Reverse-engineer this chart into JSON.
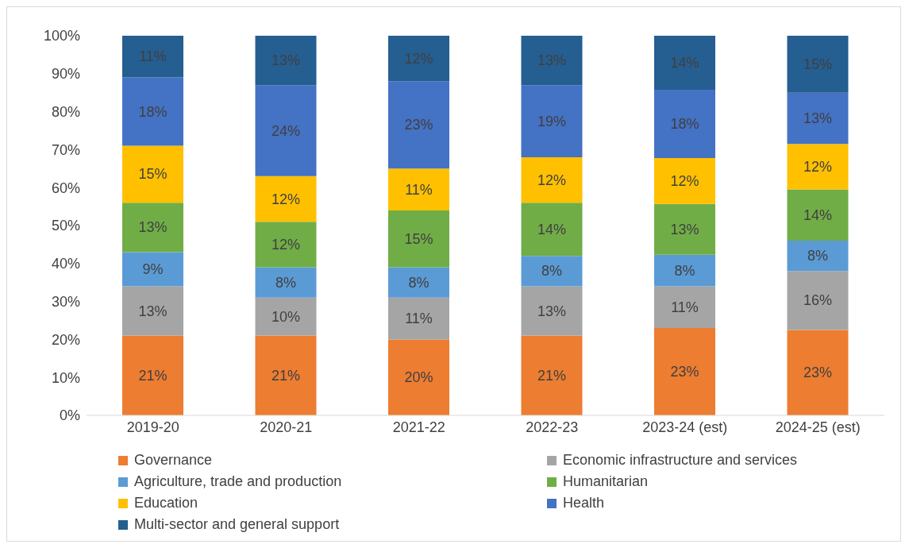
{
  "chart_data": {
    "type": "bar",
    "stacked": true,
    "categories": [
      "2019-20",
      "2020-21",
      "2021-22",
      "2022-23",
      "2023-24 (est)",
      "2024-25 (est)"
    ],
    "series": [
      {
        "name": "Governance",
        "color": "#ed7d31",
        "values": [
          21,
          21,
          20,
          21,
          23,
          22.5
        ],
        "value_labels": [
          "21%",
          "21%",
          "20%",
          "21%",
          "23%",
          "23%"
        ]
      },
      {
        "name": "Economic infrastructure and services",
        "color": "#a5a5a5",
        "values": [
          13,
          10,
          11,
          13,
          11,
          15.5
        ],
        "value_labels": [
          "13%",
          "10%",
          "11%",
          "13%",
          "11%",
          "16%"
        ]
      },
      {
        "name": "Agriculture, trade and production",
        "color": "#5b9bd5",
        "values": [
          9,
          8,
          8,
          8,
          8.3,
          8
        ],
        "value_labels": [
          "9%",
          "8%",
          "8%",
          "8%",
          "8%",
          "8%"
        ]
      },
      {
        "name": "Humanitarian",
        "color": "#70ad47",
        "values": [
          13,
          12,
          15,
          14,
          13.4,
          13.5
        ],
        "value_labels": [
          "13%",
          "12%",
          "15%",
          "14%",
          "13%",
          "14%"
        ]
      },
      {
        "name": "Education",
        "color": "#ffc000",
        "values": [
          15,
          12,
          11,
          12,
          12.1,
          12
        ],
        "value_labels": [
          "15%",
          "12%",
          "11%",
          "12%",
          "12%",
          "12%"
        ]
      },
      {
        "name": "Health",
        "color": "#4472c4",
        "values": [
          18,
          24,
          23,
          19,
          18,
          13.5
        ],
        "value_labels": [
          "18%",
          "24%",
          "23%",
          "19%",
          "18%",
          "13%"
        ]
      },
      {
        "name": "Multi-sector and general support",
        "color": "#255e91",
        "values": [
          11,
          13,
          12,
          13,
          14.2,
          15
        ],
        "value_labels": [
          "11%",
          "13%",
          "12%",
          "13%",
          "14%",
          "15%"
        ]
      }
    ],
    "ylim": [
      0,
      100
    ],
    "yticks": [
      {
        "value": 0,
        "label": "0%"
      },
      {
        "value": 10,
        "label": "10%"
      },
      {
        "value": 20,
        "label": "20%"
      },
      {
        "value": 30,
        "label": "30%"
      },
      {
        "value": 40,
        "label": "40%"
      },
      {
        "value": 50,
        "label": "50%"
      },
      {
        "value": 60,
        "label": "60%"
      },
      {
        "value": 70,
        "label": "70%"
      },
      {
        "value": 80,
        "label": "80%"
      },
      {
        "value": 90,
        "label": "90%"
      },
      {
        "value": 100,
        "label": "100%"
      }
    ],
    "grid": false,
    "legend": "bottom"
  }
}
